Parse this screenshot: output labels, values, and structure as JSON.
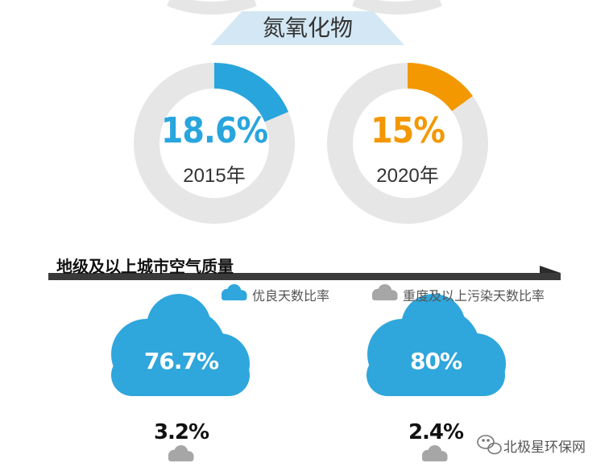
{
  "header": {
    "title": "氮氧化物"
  },
  "chart_data": [
    {
      "type": "pie",
      "title": "氮氧化物",
      "labels": [
        "2015年",
        "2020年"
      ],
      "series": [
        {
          "label": "2015年",
          "value": 18.6,
          "display": "18.6%",
          "color": "#29a5de"
        },
        {
          "label": "2020年",
          "value": 15,
          "display": "15%",
          "color": "#f39800"
        }
      ],
      "track_color": "#e6e6e6"
    },
    {
      "type": "table",
      "title": "地级及以上城市空气质量",
      "legend": [
        {
          "label": "优良天数比率",
          "color": "#2fa6dc",
          "icon": "blue-cloud-icon"
        },
        {
          "label": "重度及以上污染天数比率",
          "color": "#a6a6a6",
          "icon": "gray-cloud-icon"
        }
      ],
      "columns": [
        {
          "good_days": 76.7,
          "good_display": "76.7%",
          "severe_days": 3.2,
          "severe_display": "3.2%"
        },
        {
          "good_days": 80,
          "good_display": "80%",
          "severe_days": 2.4,
          "severe_display": "2.4%"
        }
      ]
    }
  ],
  "watermark": {
    "text": "北极星环保网",
    "icon": "wechat-icon"
  }
}
